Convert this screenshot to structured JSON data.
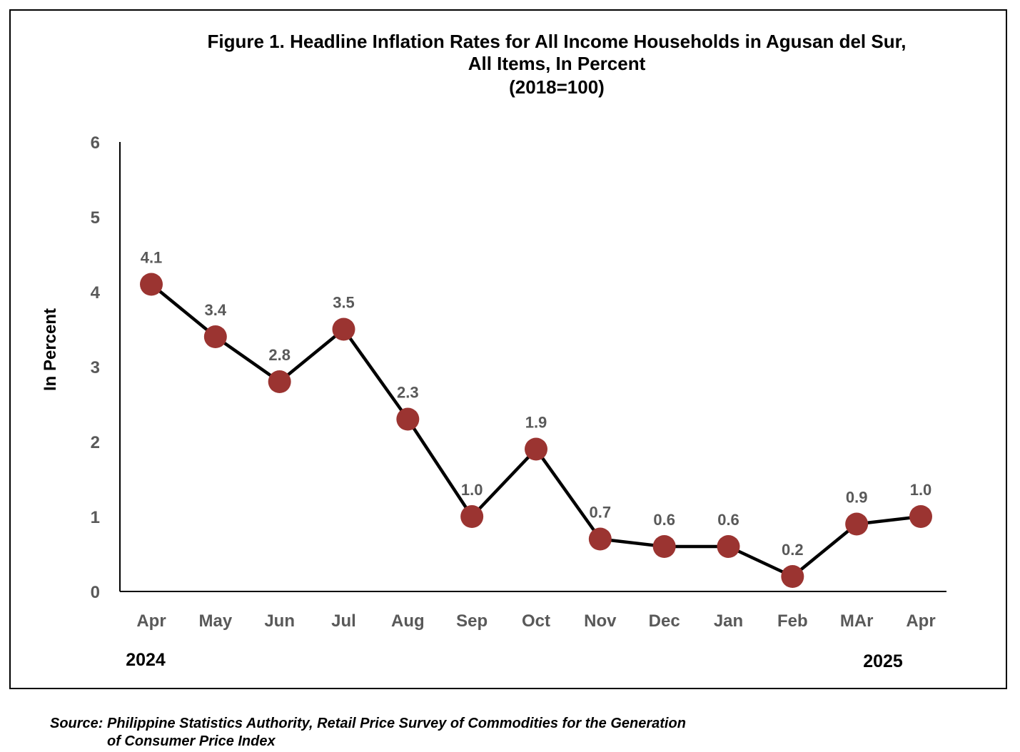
{
  "chart_data": {
    "type": "line",
    "title": "Figure 1. Headline Inflation Rates for All Income Households in Agusan del Sur,",
    "title_line2": "All Items, In Percent",
    "subtitle": "(2018=100)",
    "ylabel": "In Percent",
    "xlabel": "",
    "ylim": [
      0,
      6
    ],
    "yticks": [
      "0",
      "1",
      "2",
      "3",
      "4",
      "5",
      "6"
    ],
    "categories": [
      "Apr",
      "May",
      "Jun",
      "Jul",
      "Aug",
      "Sep",
      "Oct",
      "Nov",
      "Dec",
      "Jan",
      "Feb",
      "MAr",
      "Apr"
    ],
    "values": [
      4.1,
      3.4,
      2.8,
      3.5,
      2.3,
      1.0,
      1.9,
      0.7,
      0.6,
      0.6,
      0.2,
      0.9,
      1.0
    ],
    "data_labels": [
      "4.1",
      "3.4",
      "2.8",
      "3.5",
      "2.3",
      "1.0",
      "1.9",
      "0.7",
      "0.6",
      "0.6",
      "0.2",
      "0.9",
      "1.0"
    ],
    "year_labels": [
      "2024",
      "2025"
    ],
    "grid": false,
    "legend": "none",
    "line_color": "#000000",
    "marker_color": "#9b3431",
    "tick_label_color": "#595959"
  },
  "source": {
    "line1": "Source: Philippine Statistics Authority, Retail Price Survey of Commodities for the Generation",
    "line2": "of Consumer Price Index"
  }
}
